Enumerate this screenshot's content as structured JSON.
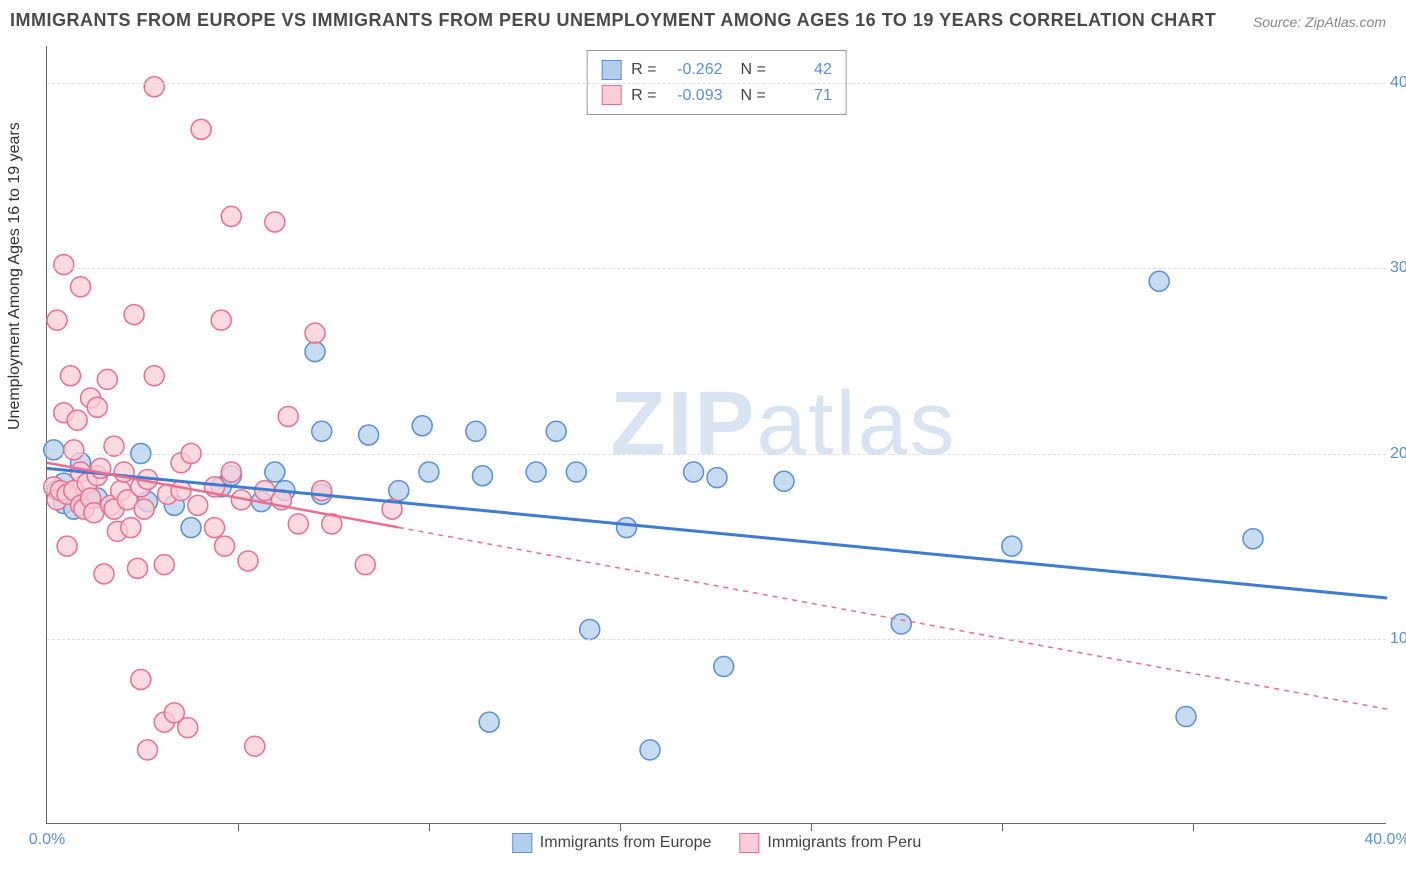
{
  "title": "IMMIGRANTS FROM EUROPE VS IMMIGRANTS FROM PERU UNEMPLOYMENT AMONG AGES 16 TO 19 YEARS CORRELATION CHART",
  "source": "Source: ZipAtlas.com",
  "watermark_a": "ZIP",
  "watermark_b": "atlas",
  "chart": {
    "type": "scatter",
    "background_color": "#ffffff",
    "grid_color": "#dcdcdc",
    "axis_color": "#666666",
    "tick_label_color": "#5b8fd6",
    "ylabel": "Unemployment Among Ages 16 to 19 years",
    "xlim": [
      0,
      40
    ],
    "ylim": [
      0,
      42
    ],
    "xtick_labels": [
      "0.0%",
      "40.0%"
    ],
    "xtick_positions": [
      0,
      40
    ],
    "xtick_minor": [
      5.7,
      11.4,
      17.1,
      22.8,
      28.5,
      34.2
    ],
    "ytick_labels": [
      "10.0%",
      "20.0%",
      "30.0%",
      "40.0%"
    ],
    "ytick_positions": [
      10,
      20,
      30,
      40
    ],
    "series": [
      {
        "name": "Immigrants from Europe",
        "marker_fill": "#b4cfec",
        "marker_stroke": "#5b8fd6",
        "marker_radius": 10,
        "line_color": "#3f7bd0",
        "line_width": 3,
        "line_dash": "none",
        "extrap_dash": "none",
        "regression": {
          "x1": 0,
          "y1": 19.2,
          "x2": 40,
          "y2": 12.2,
          "solid_until_x": 40
        },
        "R": "-0.262",
        "N": "42",
        "points": [
          [
            0.2,
            20.2
          ],
          [
            0.3,
            18.0
          ],
          [
            0.5,
            17.3
          ],
          [
            0.5,
            18.4
          ],
          [
            0.8,
            17.0
          ],
          [
            1.0,
            19.5
          ],
          [
            1.2,
            17.5
          ],
          [
            1.5,
            17.6
          ],
          [
            2.8,
            20.0
          ],
          [
            3.0,
            17.4
          ],
          [
            3.8,
            17.2
          ],
          [
            4.3,
            16.0
          ],
          [
            5.2,
            18.2
          ],
          [
            5.5,
            18.8
          ],
          [
            6.4,
            17.4
          ],
          [
            6.8,
            19.0
          ],
          [
            7.1,
            18.0
          ],
          [
            8.0,
            25.5
          ],
          [
            8.2,
            21.2
          ],
          [
            8.2,
            17.8
          ],
          [
            9.6,
            21.0
          ],
          [
            10.5,
            18.0
          ],
          [
            11.2,
            21.5
          ],
          [
            11.4,
            19.0
          ],
          [
            12.8,
            21.2
          ],
          [
            13.2,
            5.5
          ],
          [
            13.0,
            18.8
          ],
          [
            14.6,
            19.0
          ],
          [
            15.2,
            21.2
          ],
          [
            15.8,
            19.0
          ],
          [
            16.2,
            10.5
          ],
          [
            17.3,
            16.0
          ],
          [
            18.0,
            4.0
          ],
          [
            19.3,
            19.0
          ],
          [
            20.0,
            18.7
          ],
          [
            20.2,
            8.5
          ],
          [
            22.0,
            18.5
          ],
          [
            25.5,
            10.8
          ],
          [
            28.8,
            15.0
          ],
          [
            33.2,
            29.3
          ],
          [
            34.0,
            5.8
          ],
          [
            36.0,
            15.4
          ]
        ]
      },
      {
        "name": "Immigrants from Peru",
        "marker_fill": "#fbcdd8",
        "marker_stroke": "#ec6e8e",
        "marker_radius": 10,
        "line_color": "#ec6e8e",
        "line_width": 2.5,
        "line_dash": "none",
        "extrap_dash": "5,5",
        "regression": {
          "x1": 0,
          "y1": 19.5,
          "x2": 40,
          "y2": 6.2,
          "solid_until_x": 10.5
        },
        "R": "-0.093",
        "N": "71",
        "points": [
          [
            0.2,
            18.2
          ],
          [
            0.3,
            17.5
          ],
          [
            0.3,
            27.2
          ],
          [
            0.4,
            18.0
          ],
          [
            0.5,
            22.2
          ],
          [
            0.5,
            30.2
          ],
          [
            0.6,
            15.0
          ],
          [
            0.6,
            17.8
          ],
          [
            0.7,
            24.2
          ],
          [
            0.8,
            20.2
          ],
          [
            0.8,
            18.0
          ],
          [
            0.9,
            21.8
          ],
          [
            1.0,
            17.2
          ],
          [
            1.0,
            29.0
          ],
          [
            1.0,
            19.0
          ],
          [
            1.1,
            17.0
          ],
          [
            1.2,
            18.4
          ],
          [
            1.3,
            23.0
          ],
          [
            1.3,
            17.6
          ],
          [
            1.4,
            16.8
          ],
          [
            1.5,
            22.5
          ],
          [
            1.5,
            18.8
          ],
          [
            1.6,
            19.2
          ],
          [
            1.7,
            13.5
          ],
          [
            1.8,
            24.0
          ],
          [
            1.9,
            17.2
          ],
          [
            2.0,
            20.4
          ],
          [
            2.0,
            17.0
          ],
          [
            2.1,
            15.8
          ],
          [
            2.2,
            18.0
          ],
          [
            2.3,
            19.0
          ],
          [
            2.4,
            17.5
          ],
          [
            2.5,
            16.0
          ],
          [
            2.6,
            27.5
          ],
          [
            2.7,
            13.8
          ],
          [
            2.8,
            18.2
          ],
          [
            2.8,
            7.8
          ],
          [
            2.9,
            17.0
          ],
          [
            3.0,
            18.6
          ],
          [
            3.0,
            4.0
          ],
          [
            3.2,
            24.2
          ],
          [
            3.2,
            39.8
          ],
          [
            3.5,
            14.0
          ],
          [
            3.5,
            5.5
          ],
          [
            3.6,
            17.8
          ],
          [
            3.8,
            6.0
          ],
          [
            4.0,
            19.5
          ],
          [
            4.0,
            18.0
          ],
          [
            4.2,
            5.2
          ],
          [
            4.3,
            20.0
          ],
          [
            4.5,
            17.2
          ],
          [
            4.6,
            37.5
          ],
          [
            5.0,
            18.2
          ],
          [
            5.0,
            16.0
          ],
          [
            5.2,
            27.2
          ],
          [
            5.3,
            15.0
          ],
          [
            5.5,
            32.8
          ],
          [
            5.5,
            19.0
          ],
          [
            5.8,
            17.5
          ],
          [
            6.0,
            14.2
          ],
          [
            6.2,
            4.2
          ],
          [
            6.5,
            18.0
          ],
          [
            6.8,
            32.5
          ],
          [
            7.0,
            17.5
          ],
          [
            7.2,
            22.0
          ],
          [
            7.5,
            16.2
          ],
          [
            8.0,
            26.5
          ],
          [
            8.2,
            18.0
          ],
          [
            8.5,
            16.2
          ],
          [
            9.5,
            14.0
          ],
          [
            10.3,
            17.0
          ]
        ]
      }
    ],
    "bottom_legend": [
      {
        "label": "Immigrants from Europe",
        "fill": "#b4cfec",
        "stroke": "#5b8fd6"
      },
      {
        "label": "Immigrants from Peru",
        "fill": "#fbcdd8",
        "stroke": "#ec6e8e"
      }
    ]
  }
}
